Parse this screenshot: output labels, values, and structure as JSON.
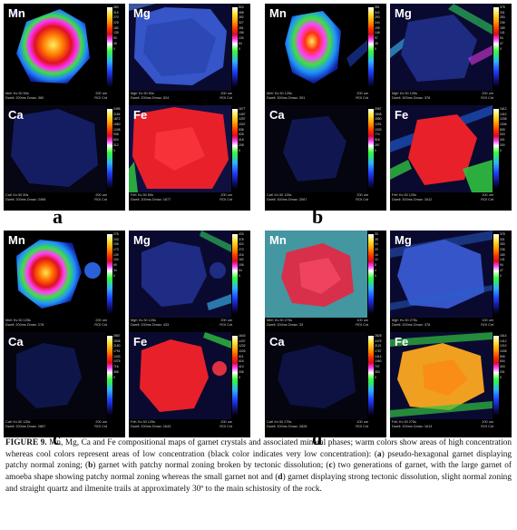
{
  "panels": [
    {
      "label": "a",
      "tiles": [
        {
          "element": "Mn",
          "ticks": [
            "360",
            "337",
            "315",
            "292",
            "270",
            "247",
            "225",
            "202",
            "180",
            "157",
            "135",
            "112",
            "90",
            "67",
            "45",
            "22",
            "0"
          ],
          "meta1": "MnK  Kv:30  50s",
          "meta2": "Dwell: 200ms  Dmax: 360",
          "scale": "200 um",
          "roi": "ROI Cnt"
        },
        {
          "element": "Mg",
          "ticks": [
            "524",
            "491",
            "458",
            "425",
            "392",
            "359",
            "327",
            "294",
            "261",
            "228",
            "196",
            "163",
            "130",
            "97",
            "64",
            "32",
            "0"
          ],
          "meta1": "MgK  Kv:30  50s",
          "meta2": "Dwell: 200ms  Dmax: 524",
          "scale": "200 um",
          "roi": "ROI Cnt"
        },
        {
          "element": "Ca",
          "ticks": [
            "2496",
            "2340",
            "2184",
            "2028",
            "1872",
            "1716",
            "1560",
            "1404",
            "1248",
            "1092",
            "936",
            "780",
            "624",
            "468",
            "312",
            "156",
            "0"
          ],
          "meta1": "CaK  Kv:30  50s",
          "meta2": "Dwell: 200ms  Dmax: 2496",
          "scale": "200 um",
          "roi": "ROI Cnt"
        },
        {
          "element": "Fe",
          "ticks": [
            "1677",
            "1572",
            "1467",
            "1362",
            "1257",
            "1152",
            "1047",
            "942",
            "838",
            "733",
            "628",
            "523",
            "418",
            "313",
            "208",
            "104",
            "0"
          ],
          "meta1": "FeK  Kv:30  50s",
          "meta2": "Dwell: 200ms  Dmax: 1677",
          "scale": "200 um",
          "roi": "ROI Cnt"
        }
      ]
    },
    {
      "label": "b",
      "tiles": [
        {
          "element": "Mn",
          "ticks": [
            "391",
            "366",
            "342",
            "317",
            "293",
            "268",
            "244",
            "219",
            "195",
            "170",
            "146",
            "121",
            "97",
            "72",
            "48",
            "23",
            "0"
          ],
          "meta1": "MnK  Kv:30  125s",
          "meta2": "Dwell: 300ms  Dmax: 391",
          "scale": "200 um",
          "roi": "ROI Cnt"
        },
        {
          "element": "Mg",
          "ticks": [
            "378",
            "354",
            "331",
            "307",
            "283",
            "260",
            "236",
            "212",
            "189",
            "165",
            "141",
            "118",
            "94",
            "70",
            "47",
            "23",
            "0"
          ],
          "meta1": "MgK  Kv:30  125s",
          "meta2": "Dwell: 300ms  Dmax: 378",
          "scale": "200 um",
          "roi": "ROI Cnt"
        },
        {
          "element": "Ca",
          "ticks": [
            "2067",
            "1937",
            "1808",
            "1679",
            "1550",
            "1420",
            "1291",
            "1162",
            "1033",
            "903",
            "774",
            "645",
            "516",
            "386",
            "257",
            "128",
            "0"
          ],
          "meta1": "CaK  Kv:30  125s",
          "meta2": "Dwell: 300ms  Dmax: 2067",
          "scale": "200 um",
          "roi": "ROI Cnt"
        },
        {
          "element": "Fe",
          "ticks": [
            "1612",
            "1511",
            "1410",
            "1309",
            "1208",
            "1107",
            "1006",
            "906",
            "805",
            "704",
            "603",
            "502",
            "401",
            "300",
            "200",
            "99",
            "0"
          ],
          "meta1": "FeK  Kv:30  125s",
          "meta2": "Dwell: 300ms  Dmax: 1612",
          "scale": "200 um",
          "roi": "ROI Cnt"
        }
      ]
    },
    {
      "label": "c",
      "tiles": [
        {
          "element": "Mn",
          "ticks": [
            "278",
            "260",
            "243",
            "225",
            "208",
            "191",
            "173",
            "156",
            "139",
            "121",
            "104",
            "86",
            "69",
            "52",
            "34",
            "17",
            "0"
          ],
          "meta1": "MnK  Kv:30  125s",
          "meta2": "Dwell: 200ms  Dmax: 278",
          "scale": "200 um",
          "roi": "ROI Cnt"
        },
        {
          "element": "Mg",
          "ticks": [
            "433",
            "405",
            "378",
            "351",
            "324",
            "297",
            "270",
            "243",
            "216",
            "189",
            "162",
            "135",
            "108",
            "81",
            "54",
            "27",
            "0"
          ],
          "meta1": "MgK  Kv:30  125s",
          "meta2": "Dwell: 200ms  Dmax: 433",
          "scale": "200 um",
          "roi": "ROI Cnt"
        },
        {
          "element": "Ca",
          "ticks": [
            "2867",
            "2687",
            "2508",
            "2329",
            "2150",
            "1971",
            "1791",
            "1612",
            "1433",
            "1254",
            "1075",
            "895",
            "716",
            "537",
            "358",
            "179",
            "0"
          ],
          "meta1": "CaK  Kv:30  125s",
          "meta2": "Dwell: 200ms  Dmax: 2867",
          "scale": "200 um",
          "roi": "ROI Cnt"
        },
        {
          "element": "Fe",
          "ticks": [
            "1643",
            "1540",
            "1437",
            "1334",
            "1232",
            "1129",
            "1026",
            "924",
            "821",
            "718",
            "616",
            "513",
            "410",
            "308",
            "205",
            "102",
            "0"
          ],
          "meta1": "FeK  Kv:30  125s",
          "meta2": "Dwell: 200ms  Dmax: 1643",
          "scale": "200 um",
          "roi": "ROI Cnt"
        }
      ]
    },
    {
      "label": "d",
      "tiles": [
        {
          "element": "Mn",
          "ticks": [
            "33",
            "30",
            "28",
            "26",
            "24",
            "22",
            "20",
            "18",
            "16",
            "14",
            "12",
            "10",
            "8",
            "6",
            "4",
            "2",
            "0"
          ],
          "meta1": "MnK  Kv:30  275s",
          "meta2": "Dwell: 200ms  Dmax: 33",
          "scale": "100 um",
          "roi": "ROI Cnt"
        },
        {
          "element": "Mg",
          "ticks": [
            "378",
            "354",
            "331",
            "307",
            "283",
            "260",
            "236",
            "212",
            "189",
            "165",
            "141",
            "118",
            "94",
            "70",
            "47",
            "23",
            "0"
          ],
          "meta1": "MgK  Kv:30  275s",
          "meta2": "Dwell: 200ms  Dmax: 378",
          "scale": "100 um",
          "roi": "ROI Cnt"
        },
        {
          "element": "Ca",
          "ticks": [
            "2828",
            "2651",
            "2475",
            "2298",
            "2121",
            "1944",
            "1767",
            "1590",
            "1414",
            "1237",
            "1060",
            "883",
            "707",
            "530",
            "353",
            "176",
            "0"
          ],
          "meta1": "CaK  Kv:30  275s",
          "meta2": "Dwell: 200ms  Dmax: 2828",
          "scale": "100 um",
          "roi": "ROI Cnt"
        },
        {
          "element": "Fe",
          "ticks": [
            "1614",
            "1513",
            "1412",
            "1311",
            "1210",
            "1109",
            "1008",
            "907",
            "806",
            "705",
            "604",
            "503",
            "403",
            "302",
            "201",
            "100",
            "0"
          ],
          "meta1": "FeK  Kv:30  275s",
          "meta2": "Dwell: 200ms  Dmax: 1614",
          "scale": "100 um",
          "roi": "ROI Cnt"
        }
      ]
    }
  ],
  "caption": {
    "figure_label": "FIGURE 9.",
    "segments": [
      {
        "text": " Mn, Mg, Ca and Fe compositional maps of garnet crystals and associated mineral phases; warm colors show areas of high concentration whereas cool colors represent areas of low concentration (black color indicates very low concentration): (",
        "bold": false
      },
      {
        "text": "a",
        "bold": true
      },
      {
        "text": ") pseudo-hexagonal garnet displaying patchy normal zoning; (",
        "bold": false
      },
      {
        "text": "b",
        "bold": true
      },
      {
        "text": ") garnet with patchy normal zoning broken by tectonic dissolution; (",
        "bold": false
      },
      {
        "text": "c",
        "bold": true
      },
      {
        "text": ") two generations of garnet, with the large garnet of amoeba shape showing patchy normal zoning whereas the small garnet not and (",
        "bold": false
      },
      {
        "text": "d",
        "bold": true
      },
      {
        "text": ") garnet displaying strong tectonic dissolution, slight normal zoning and straight quartz and ilmenite trails at approximately 30º to the main schistosity of the rock.",
        "bold": false
      }
    ]
  }
}
